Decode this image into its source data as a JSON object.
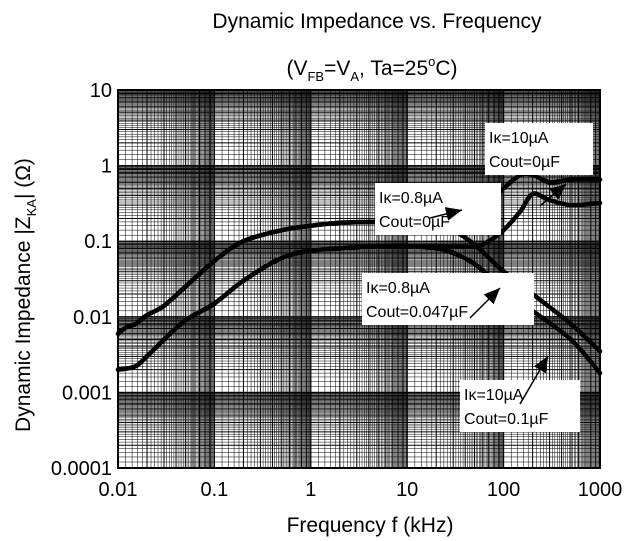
{
  "chart_data": {
    "type": "line",
    "title": "Dynamic Impedance vs. Frequency",
    "subtitle": {
      "parts": [
        {
          "text": "(V",
          "sub": false
        },
        {
          "text": "FB",
          "sub": true
        },
        {
          "text": "=V",
          "sub": false
        },
        {
          "text": "A",
          "sub": true
        },
        {
          "text": ", Ta=25",
          "sub": false
        },
        {
          "text": "o",
          "sup": true
        },
        {
          "text": "C)",
          "sub": false
        }
      ]
    },
    "xlabel": "Frequency  f  (kHz)",
    "ylabel": {
      "parts": [
        {
          "text": "Dynamic Impedance  |Z",
          "sub": false
        },
        {
          "text": "KA",
          "sub": true
        },
        {
          "text": "|  (Ω)",
          "sub": false
        }
      ]
    },
    "x_scale": "log",
    "y_scale": "log",
    "xlim": [
      0.01,
      1000
    ],
    "ylim": [
      0.0001,
      10
    ],
    "x_ticks": [
      "0.01",
      "0.1",
      "1",
      "10",
      "100",
      "1000"
    ],
    "y_ticks": [
      "0.0001",
      "0.001",
      "0.01",
      "0.1",
      "1",
      "10"
    ],
    "grid": true,
    "series": [
      {
        "label": "Iκ=0.8µA Cout=0µF",
        "points": [
          [
            0.01,
            0.006
          ],
          [
            0.012,
            0.0072
          ],
          [
            0.015,
            0.008
          ],
          [
            0.02,
            0.0105
          ],
          [
            0.03,
            0.014
          ],
          [
            0.05,
            0.025
          ],
          [
            0.1,
            0.055
          ],
          [
            0.2,
            0.1
          ],
          [
            0.5,
            0.14
          ],
          [
            1,
            0.16
          ],
          [
            2,
            0.175
          ],
          [
            5,
            0.18
          ],
          [
            10,
            0.18
          ],
          [
            20,
            0.18
          ],
          [
            30,
            0.19
          ],
          [
            50,
            0.23
          ],
          [
            70,
            0.32
          ],
          [
            100,
            0.5
          ],
          [
            150,
            0.75
          ],
          [
            200,
            0.75
          ],
          [
            300,
            0.6
          ],
          [
            500,
            0.65
          ],
          [
            1000,
            0.65
          ]
        ]
      },
      {
        "label": "Iκ=10µA Cout=0µF",
        "points": [
          [
            0.01,
            0.002
          ],
          [
            0.015,
            0.0022
          ],
          [
            0.02,
            0.003
          ],
          [
            0.03,
            0.005
          ],
          [
            0.05,
            0.009
          ],
          [
            0.1,
            0.015
          ],
          [
            0.2,
            0.03
          ],
          [
            0.5,
            0.06
          ],
          [
            1,
            0.075
          ],
          [
            2,
            0.08
          ],
          [
            5,
            0.085
          ],
          [
            10,
            0.085
          ],
          [
            20,
            0.085
          ],
          [
            50,
            0.085
          ],
          [
            70,
            0.1
          ],
          [
            100,
            0.14
          ],
          [
            150,
            0.25
          ],
          [
            200,
            0.42
          ],
          [
            300,
            0.35
          ],
          [
            500,
            0.3
          ],
          [
            1000,
            0.32
          ]
        ]
      },
      {
        "label": "Iκ=0.8µA Cout=0.047µF",
        "points": [
          [
            0.01,
            0.006
          ],
          [
            0.012,
            0.0072
          ],
          [
            0.015,
            0.008
          ],
          [
            0.02,
            0.0105
          ],
          [
            0.03,
            0.014
          ],
          [
            0.05,
            0.025
          ],
          [
            0.1,
            0.055
          ],
          [
            0.2,
            0.1
          ],
          [
            0.5,
            0.14
          ],
          [
            1,
            0.16
          ],
          [
            2,
            0.175
          ],
          [
            5,
            0.18
          ],
          [
            10,
            0.18
          ],
          [
            20,
            0.17
          ],
          [
            30,
            0.14
          ],
          [
            50,
            0.09
          ],
          [
            100,
            0.04
          ],
          [
            200,
            0.02
          ],
          [
            500,
            0.008
          ],
          [
            1000,
            0.0035
          ]
        ]
      },
      {
        "label": "Iκ=10µA Cout=0.1µF",
        "points": [
          [
            0.01,
            0.002
          ],
          [
            0.015,
            0.0022
          ],
          [
            0.02,
            0.003
          ],
          [
            0.03,
            0.005
          ],
          [
            0.05,
            0.009
          ],
          [
            0.1,
            0.015
          ],
          [
            0.2,
            0.03
          ],
          [
            0.5,
            0.06
          ],
          [
            1,
            0.075
          ],
          [
            2,
            0.08
          ],
          [
            5,
            0.085
          ],
          [
            10,
            0.085
          ],
          [
            20,
            0.08
          ],
          [
            30,
            0.07
          ],
          [
            50,
            0.05
          ],
          [
            100,
            0.024
          ],
          [
            200,
            0.012
          ],
          [
            500,
            0.005
          ],
          [
            1000,
            0.0018
          ]
        ]
      }
    ],
    "annotations": [
      {
        "lines": [
          "Iκ=0.8µA",
          "Cout=0µF"
        ]
      },
      {
        "lines": [
          "Iκ=10µA",
          "Cout=0µF"
        ]
      },
      {
        "lines": [
          "Iκ=0.8µA",
          "Cout=0.047µF"
        ]
      },
      {
        "lines": [
          "Iκ=10µA",
          "Cout=0.1µF"
        ]
      }
    ]
  }
}
